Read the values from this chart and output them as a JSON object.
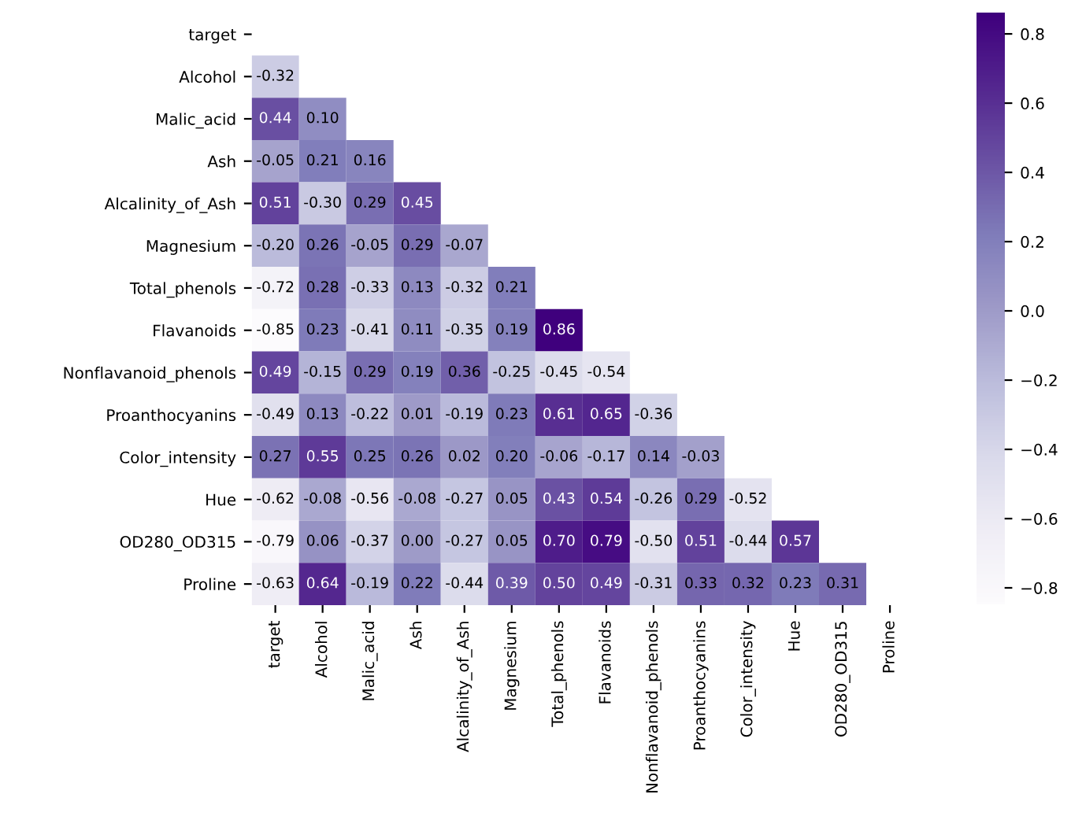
{
  "chart_data": {
    "type": "heatmap",
    "categories": [
      "target",
      "Alcohol",
      "Malic_acid",
      "Ash",
      "Alcalinity_of_Ash",
      "Magnesium",
      "Total_phenols",
      "Flavanoids",
      "Nonflavanoid_phenols",
      "Proanthocyanins",
      "Color_intensity",
      "Hue",
      "OD280_OD315",
      "Proline"
    ],
    "y_categories": [
      "target",
      "Alcohol",
      "Malic_acid",
      "Ash",
      "Alcalinity_of_Ash",
      "Magnesium",
      "Total_phenols",
      "Flavanoids",
      "Nonflavanoid_phenols",
      "Proanthocyanins",
      "Color_intensity",
      "Hue",
      "OD280_OD315",
      "Proline"
    ],
    "cells": [
      [
        null,
        null,
        null,
        null,
        null,
        null,
        null,
        null,
        null,
        null,
        null,
        null,
        null,
        null
      ],
      [
        -0.32,
        null,
        null,
        null,
        null,
        null,
        null,
        null,
        null,
        null,
        null,
        null,
        null,
        null
      ],
      [
        0.44,
        0.1,
        null,
        null,
        null,
        null,
        null,
        null,
        null,
        null,
        null,
        null,
        null,
        null
      ],
      [
        -0.05,
        0.21,
        0.16,
        null,
        null,
        null,
        null,
        null,
        null,
        null,
        null,
        null,
        null,
        null
      ],
      [
        0.51,
        -0.3,
        0.29,
        0.45,
        null,
        null,
        null,
        null,
        null,
        null,
        null,
        null,
        null,
        null
      ],
      [
        -0.2,
        0.26,
        -0.05,
        0.29,
        -0.07,
        null,
        null,
        null,
        null,
        null,
        null,
        null,
        null,
        null
      ],
      [
        -0.72,
        0.28,
        -0.33,
        0.13,
        -0.32,
        0.21,
        null,
        null,
        null,
        null,
        null,
        null,
        null,
        null
      ],
      [
        -0.85,
        0.23,
        -0.41,
        0.11,
        -0.35,
        0.19,
        0.86,
        null,
        null,
        null,
        null,
        null,
        null,
        null
      ],
      [
        0.49,
        -0.15,
        0.29,
        0.19,
        0.36,
        -0.25,
        -0.45,
        -0.54,
        null,
        null,
        null,
        null,
        null,
        null
      ],
      [
        -0.49,
        0.13,
        -0.22,
        0.01,
        -0.19,
        0.23,
        0.61,
        0.65,
        -0.36,
        null,
        null,
        null,
        null,
        null
      ],
      [
        0.27,
        0.55,
        0.25,
        0.26,
        0.02,
        0.2,
        -0.06,
        -0.17,
        0.14,
        -0.03,
        null,
        null,
        null,
        null
      ],
      [
        -0.62,
        -0.08,
        -0.56,
        -0.08,
        -0.27,
        0.05,
        0.43,
        0.54,
        -0.26,
        0.29,
        -0.52,
        null,
        null,
        null
      ],
      [
        -0.79,
        0.06,
        -0.37,
        0.0,
        -0.27,
        0.05,
        0.7,
        0.79,
        -0.5,
        0.51,
        -0.44,
        0.57,
        null,
        null
      ],
      [
        -0.63,
        0.64,
        -0.19,
        0.22,
        -0.44,
        0.39,
        0.5,
        0.49,
        -0.31,
        0.33,
        0.32,
        0.23,
        0.31,
        null
      ]
    ],
    "cell_labels": [
      [
        null,
        null,
        null,
        null,
        null,
        null,
        null,
        null,
        null,
        null,
        null,
        null,
        null,
        null
      ],
      [
        "-0.32",
        null,
        null,
        null,
        null,
        null,
        null,
        null,
        null,
        null,
        null,
        null,
        null,
        null
      ],
      [
        "0.44",
        "0.10",
        null,
        null,
        null,
        null,
        null,
        null,
        null,
        null,
        null,
        null,
        null,
        null
      ],
      [
        "-0.05",
        "0.21",
        "0.16",
        null,
        null,
        null,
        null,
        null,
        null,
        null,
        null,
        null,
        null,
        null
      ],
      [
        "0.51",
        "-0.30",
        "0.29",
        "0.45",
        null,
        null,
        null,
        null,
        null,
        null,
        null,
        null,
        null,
        null
      ],
      [
        "-0.20",
        "0.26",
        "-0.05",
        "0.29",
        "-0.07",
        null,
        null,
        null,
        null,
        null,
        null,
        null,
        null,
        null
      ],
      [
        "-0.72",
        "0.28",
        "-0.33",
        "0.13",
        "-0.32",
        "0.21",
        null,
        null,
        null,
        null,
        null,
        null,
        null,
        null
      ],
      [
        "-0.85",
        "0.23",
        "-0.41",
        "0.11",
        "-0.35",
        "0.19",
        "0.86",
        null,
        null,
        null,
        null,
        null,
        null,
        null
      ],
      [
        "0.49",
        "-0.15",
        "0.29",
        "0.19",
        "0.36",
        "-0.25",
        "-0.45",
        "-0.54",
        null,
        null,
        null,
        null,
        null,
        null
      ],
      [
        "-0.49",
        "0.13",
        "-0.22",
        "0.01",
        "-0.19",
        "0.23",
        "0.61",
        "0.65",
        "-0.36",
        null,
        null,
        null,
        null,
        null
      ],
      [
        "0.27",
        "0.55",
        "0.25",
        "0.26",
        "0.02",
        "0.20",
        "-0.06",
        "-0.17",
        "0.14",
        "-0.03",
        null,
        null,
        null,
        null
      ],
      [
        "-0.62",
        "-0.08",
        "-0.56",
        "-0.08",
        "-0.27",
        "0.05",
        "0.43",
        "0.54",
        "-0.26",
        "0.29",
        "-0.52",
        null,
        null,
        null
      ],
      [
        "-0.79",
        "0.06",
        "-0.37",
        "0.00",
        "-0.27",
        "0.05",
        "0.70",
        "0.79",
        "-0.50",
        "0.51",
        "-0.44",
        "0.57",
        null,
        null
      ],
      [
        "-0.63",
        "0.64",
        "-0.19",
        "0.22",
        "-0.44",
        "0.39",
        "0.50",
        "0.49",
        "-0.31",
        "0.33",
        "0.32",
        "0.23",
        "0.31",
        null
      ]
    ],
    "clim": [
      -0.85,
      0.86
    ],
    "cticks": [
      {
        "value": -0.8,
        "label": "−0.8"
      },
      {
        "value": -0.6,
        "label": "−0.6"
      },
      {
        "value": -0.4,
        "label": "−0.4"
      },
      {
        "value": -0.2,
        "label": "−0.2"
      },
      {
        "value": 0.0,
        "label": "0.0"
      },
      {
        "value": 0.2,
        "label": "0.2"
      },
      {
        "value": 0.4,
        "label": "0.4"
      },
      {
        "value": 0.6,
        "label": "0.6"
      },
      {
        "value": 0.8,
        "label": "0.8"
      }
    ]
  }
}
